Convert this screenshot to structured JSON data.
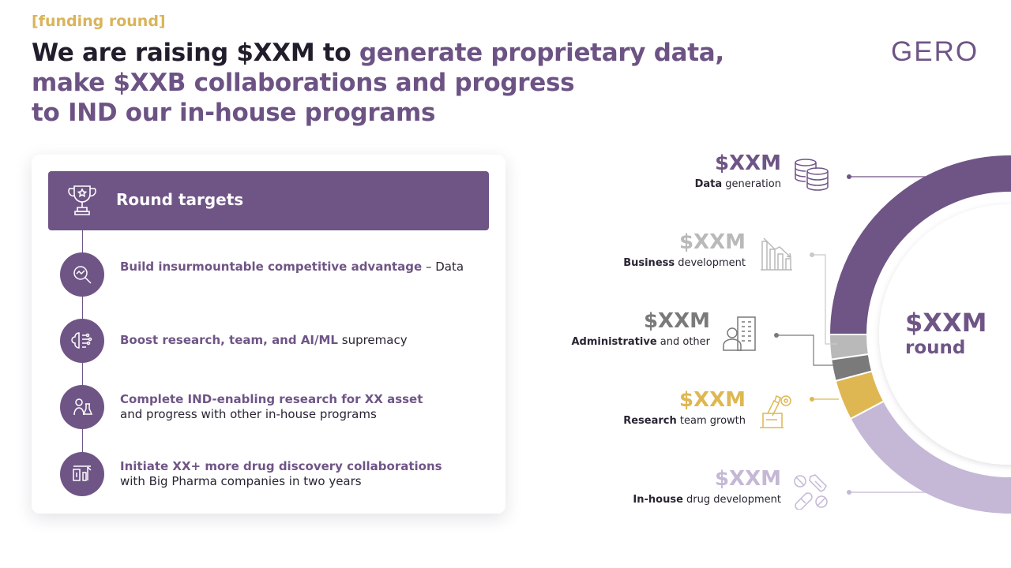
{
  "tag": "[funding round]",
  "headline": {
    "dark": "We are raising $XXM to ",
    "line1_purple": "generate proprietary data,",
    "line2": "make $XXB collaborations and progress",
    "line3": "to IND our in-house programs"
  },
  "logo": "GERO",
  "card": {
    "title": "Round targets",
    "targets": [
      {
        "bold": "Build insurmountable competitive advantage",
        "rest": " – Data",
        "icon": "analytics-magnifier-icon"
      },
      {
        "bold": "Boost research, team, and AI/ML",
        "rest": " supremacy",
        "icon": "ai-brain-icon"
      },
      {
        "bold": "Complete IND-enabling research for XX asset",
        "rest": "and progress with other in-house programs",
        "icon": "lab-research-icon"
      },
      {
        "bold": "Initiate XX+ more drug discovery collaborations",
        "rest": "with Big Pharma companies in two years",
        "icon": "pharma-collaboration-icon"
      }
    ]
  },
  "allocation": [
    {
      "amount": "$XXM",
      "bold": "Data",
      "rest": " generation",
      "color": "#6f5586",
      "icon": "database-icon"
    },
    {
      "amount": "$XXM",
      "bold": "Business",
      "rest": " development",
      "color": "#b9b9b9",
      "icon": "bar-chart-icon"
    },
    {
      "amount": "$XXM",
      "bold": "Administrative",
      "rest": " and other",
      "color": "#7a7a7a",
      "icon": "office-building-icon"
    },
    {
      "amount": "$XXM",
      "bold": "Research",
      "rest": " team growth",
      "color": "#dfb752",
      "icon": "microscope-icon"
    },
    {
      "amount": "$XXM",
      "bold": "In-house",
      "rest": " drug development",
      "color": "#c5b8d6",
      "icon": "pills-icon"
    }
  ],
  "center": {
    "amount": "$XXM",
    "label": "round"
  }
}
